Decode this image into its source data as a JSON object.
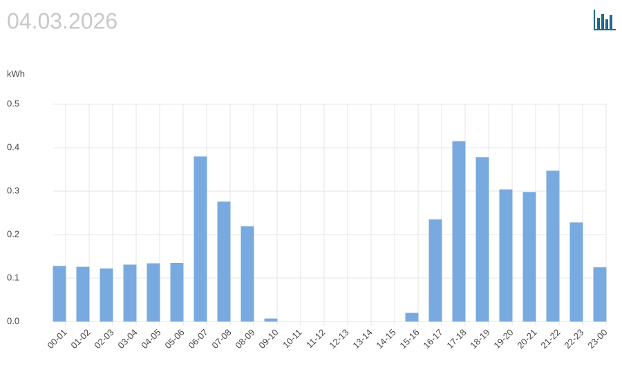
{
  "chart_data": {
    "type": "bar",
    "title": "04.03.2026",
    "y_label": "kWh",
    "categories": [
      "00-01",
      "01-02",
      "02-03",
      "03-04",
      "04-05",
      "05-06",
      "06-07",
      "07-08",
      "08-09",
      "09-10",
      "10-11",
      "11-12",
      "12-13",
      "13-14",
      "14-15",
      "15-16",
      "16-17",
      "17-18",
      "18-19",
      "19-20",
      "20-21",
      "21-22",
      "22-23",
      "23-00"
    ],
    "values": [
      0.128,
      0.126,
      0.122,
      0.131,
      0.134,
      0.135,
      0.38,
      0.276,
      0.219,
      0.007,
      0,
      0,
      0,
      0,
      0,
      0.02,
      0.235,
      0.415,
      0.378,
      0.304,
      0.298,
      0.347,
      0.228,
      0.125
    ],
    "color": "#78aadf",
    "ylim": [
      0,
      0.5
    ],
    "yticks": [
      {
        "value": 0,
        "label": "0.0"
      },
      0.1,
      0.2,
      0.3,
      0.4,
      0.5
    ],
    "grid": true
  }
}
